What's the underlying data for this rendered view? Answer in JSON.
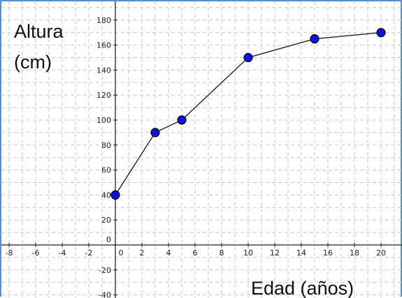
{
  "chart_data": {
    "type": "line",
    "x": [
      0,
      3,
      5,
      10,
      15,
      20
    ],
    "y": [
      40,
      90,
      100,
      150,
      165,
      170
    ],
    "xlabel": "Edad (años)",
    "ylabel": [
      "Altura",
      "(cm)"
    ],
    "xlim": [
      -8,
      21.5
    ],
    "ylim": [
      -42,
      190
    ],
    "x_ticks": [
      "-8",
      "-6",
      "-4",
      "-2",
      "0",
      "2",
      "4",
      "6",
      "8",
      "10",
      "12",
      "14",
      "16",
      "18",
      "20"
    ],
    "y_ticks": [
      "-40",
      "-20",
      "0",
      "20",
      "40",
      "60",
      "80",
      "100",
      "120",
      "140",
      "160",
      "180"
    ],
    "grid": true,
    "grid_style": "dashed",
    "marker_color": "#1010e0",
    "line_color": "#222222",
    "frame_color": "#5b8fc7"
  }
}
